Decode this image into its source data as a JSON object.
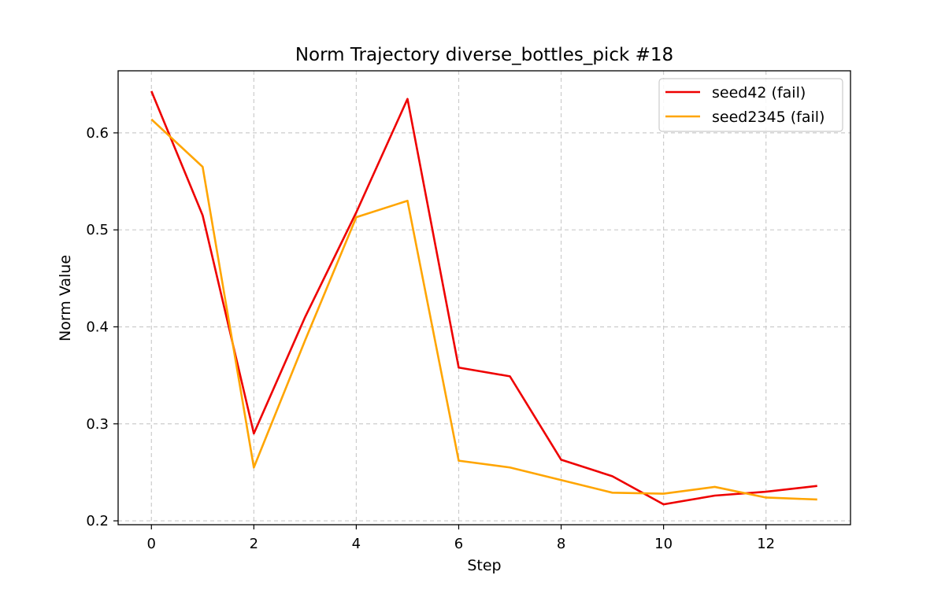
{
  "chart_data": {
    "type": "line",
    "title": "Norm Trajectory diverse_bottles_pick #18",
    "xlabel": "Step",
    "ylabel": "Norm Value",
    "xlim": [
      -0.65,
      13.65
    ],
    "ylim": [
      0.196,
      0.664
    ],
    "xticks": [
      0,
      2,
      4,
      6,
      8,
      10,
      12
    ],
    "yticks": [
      0.2,
      0.3,
      0.4,
      0.5,
      0.6
    ],
    "xtick_labels": [
      "0",
      "2",
      "4",
      "6",
      "8",
      "10",
      "12"
    ],
    "ytick_labels": [
      "0.2",
      "0.3",
      "0.4",
      "0.5",
      "0.6"
    ],
    "grid": true,
    "legend_position": "top-right",
    "x": [
      0,
      1,
      2,
      3,
      4,
      5,
      6,
      7,
      8,
      9,
      10,
      11,
      12,
      13
    ],
    "series": [
      {
        "name": "seed42 (fail)",
        "color": "#ee0000",
        "values": [
          0.643,
          0.515,
          0.29,
          0.41,
          0.518,
          0.635,
          0.358,
          0.349,
          0.263,
          0.246,
          0.217,
          0.226,
          0.23,
          0.236
        ]
      },
      {
        "name": "seed2345 (fail)",
        "color": "#ffa500",
        "values": [
          0.614,
          0.565,
          0.255,
          0.386,
          0.513,
          0.53,
          0.262,
          0.255,
          0.242,
          0.229,
          0.228,
          0.235,
          0.224,
          0.222
        ]
      }
    ]
  }
}
